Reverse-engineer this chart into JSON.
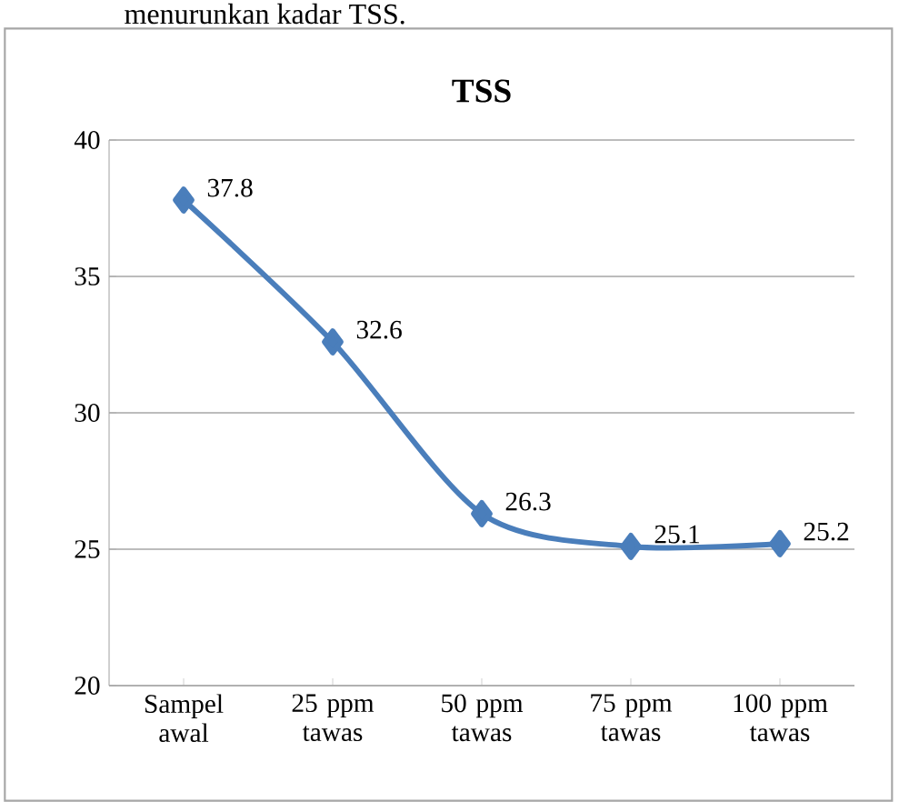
{
  "chart_data": {
    "type": "line",
    "title": "TSS",
    "annotations": [
      "menurunkan kadar TSS."
    ],
    "categories": [
      "Sampel awal",
      "25 ppm tawas",
      "50 ppm tawas",
      "75 ppm tawas",
      "100 ppm tawas"
    ],
    "series": [
      {
        "color": "#4a7ebb",
        "values": [
          37.8,
          32.6,
          26.3,
          25.1,
          25.2
        ]
      }
    ],
    "ylim": [
      20,
      40
    ],
    "yticks": [
      20,
      25,
      30,
      35,
      40
    ],
    "grid": "y",
    "marker": "diamond",
    "line_style": "solid",
    "data_labels": true
  }
}
